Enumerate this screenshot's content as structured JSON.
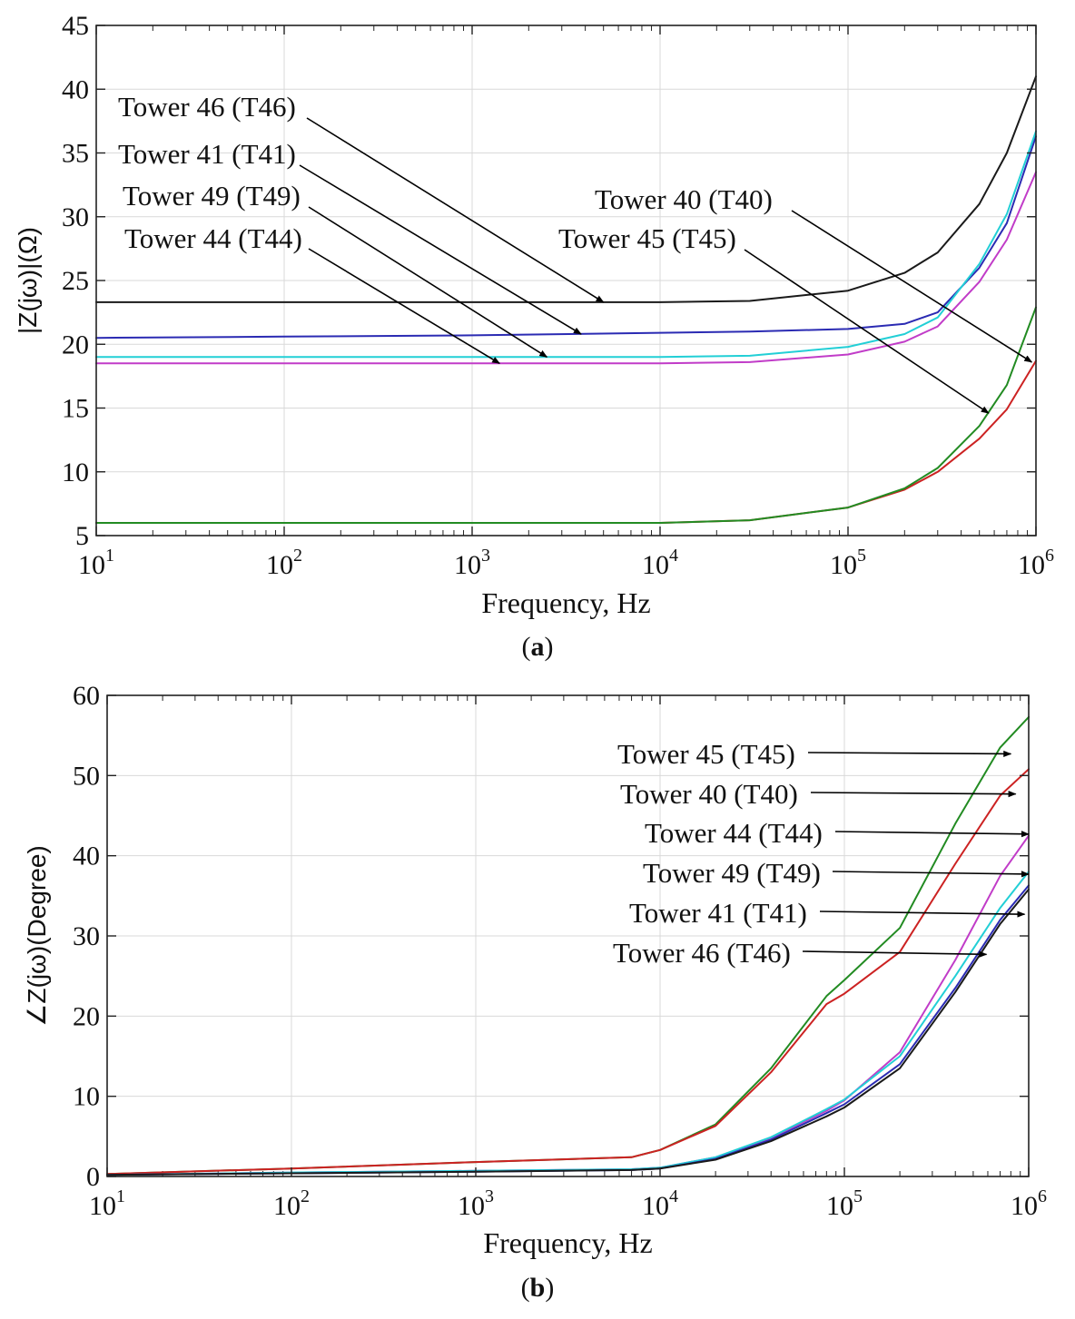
{
  "chart_data": [
    {
      "type": "line",
      "panel": "a",
      "xlabel": "Frequency, Hz",
      "ylabel": "|Z(jω)|(Ω)",
      "xscale": "log",
      "xlim": [
        10,
        1000000
      ],
      "ylim": [
        5,
        45
      ],
      "x_ticks": [
        {
          "base": "10",
          "exp": "1"
        },
        {
          "base": "10",
          "exp": "2"
        },
        {
          "base": "10",
          "exp": "3"
        },
        {
          "base": "10",
          "exp": "4"
        },
        {
          "base": "10",
          "exp": "5"
        },
        {
          "base": "10",
          "exp": "6"
        }
      ],
      "y_ticks": [
        "5",
        "10",
        "15",
        "20",
        "25",
        "30",
        "35",
        "40",
        "45"
      ],
      "grid": true,
      "x": [
        10,
        100,
        1000,
        10000,
        30000,
        100000,
        200000,
        300000,
        500000,
        700000,
        1000000
      ],
      "series": [
        {
          "name": "Tower 46 (T46)",
          "color": "#1a1a1a",
          "values": [
            23.3,
            23.3,
            23.3,
            23.3,
            23.4,
            24.2,
            25.6,
            27.2,
            31.0,
            35.0,
            41.0
          ]
        },
        {
          "name": "Tower 41 (T41)",
          "color": "#2b2bb3",
          "values": [
            20.5,
            20.6,
            20.7,
            20.9,
            21.0,
            21.2,
            21.6,
            22.5,
            26.0,
            29.5,
            36.3
          ]
        },
        {
          "name": "Tower 49 (T49)",
          "color": "#22cfd6",
          "values": [
            19.0,
            19.0,
            19.0,
            19.0,
            19.1,
            19.8,
            20.8,
            22.1,
            26.3,
            30.2,
            36.7
          ]
        },
        {
          "name": "Tower 44 (T44)",
          "color": "#c13cc8",
          "values": [
            18.5,
            18.5,
            18.5,
            18.5,
            18.6,
            19.2,
            20.2,
            21.4,
            24.9,
            28.2,
            33.5
          ]
        },
        {
          "name": "Tower 40 (T40)",
          "color": "#cc2222",
          "values": [
            6.0,
            6.0,
            6.0,
            6.0,
            6.2,
            7.2,
            8.6,
            10.0,
            12.6,
            14.9,
            18.7
          ]
        },
        {
          "name": "Tower 45 (T45)",
          "color": "#228b22",
          "values": [
            6.0,
            6.0,
            6.0,
            6.0,
            6.2,
            7.2,
            8.7,
            10.3,
            13.6,
            16.8,
            22.9
          ]
        }
      ],
      "annotations": [
        {
          "text": "Tower 46 (T46)",
          "target": [
            5000,
            23.3
          ]
        },
        {
          "text": "Tower 41 (T41)",
          "target": [
            3800,
            20.8
          ]
        },
        {
          "text": "Tower 49 (T49)",
          "target": [
            2500,
            19.0
          ]
        },
        {
          "text": "Tower 44 (T44)",
          "target": [
            1400,
            18.5
          ]
        },
        {
          "text": "Tower 40 (T40)",
          "target": [
            950000,
            18.6
          ]
        },
        {
          "text": "Tower 45 (T45)",
          "target": [
            560000,
            14.6
          ]
        }
      ],
      "caption": "(a)"
    },
    {
      "type": "line",
      "panel": "b",
      "xlabel": "Frequency, Hz",
      "ylabel": "∠Z(jω)(Degree)",
      "xscale": "log",
      "xlim": [
        10,
        1000000
      ],
      "ylim": [
        0,
        60
      ],
      "x_ticks": [
        {
          "base": "10",
          "exp": "1"
        },
        {
          "base": "10",
          "exp": "2"
        },
        {
          "base": "10",
          "exp": "3"
        },
        {
          "base": "10",
          "exp": "4"
        },
        {
          "base": "10",
          "exp": "5"
        },
        {
          "base": "10",
          "exp": "6"
        }
      ],
      "y_ticks": [
        "0",
        "10",
        "20",
        "30",
        "40",
        "50",
        "60"
      ],
      "grid": true,
      "x": [
        10,
        100,
        1000,
        7000,
        10000,
        20000,
        40000,
        80000,
        100000,
        200000,
        400000,
        700000,
        1000000
      ],
      "series": [
        {
          "name": "Tower 45 (T45)",
          "color": "#228b22",
          "values": [
            0.3,
            1.0,
            1.8,
            2.4,
            3.3,
            6.5,
            13.5,
            22.5,
            24.5,
            31.0,
            44.0,
            53.5,
            57.3
          ]
        },
        {
          "name": "Tower 40 (T40)",
          "color": "#cc2222",
          "values": [
            0.3,
            1.0,
            1.8,
            2.4,
            3.3,
            6.3,
            13.0,
            21.5,
            22.8,
            28.0,
            39.0,
            47.5,
            50.8
          ]
        },
        {
          "name": "Tower 44 (T44)",
          "color": "#c13cc8",
          "values": [
            0.2,
            0.5,
            0.7,
            0.9,
            1.1,
            2.4,
            4.8,
            8.2,
            9.5,
            15.5,
            27.0,
            37.5,
            42.5
          ]
        },
        {
          "name": "Tower 49 (T49)",
          "color": "#22cfd6",
          "values": [
            0.2,
            0.5,
            0.7,
            0.9,
            1.1,
            2.4,
            4.9,
            8.4,
            9.6,
            15.0,
            25.0,
            33.5,
            38.0
          ]
        },
        {
          "name": "Tower 41 (T41)",
          "color": "#2b2bb3",
          "values": [
            0.2,
            0.4,
            0.6,
            0.8,
            1.0,
            2.2,
            4.6,
            7.9,
            9.0,
            14.0,
            23.5,
            32.0,
            36.3
          ]
        },
        {
          "name": "Tower 46 (T46)",
          "color": "#1a1a1a",
          "values": [
            0.2,
            0.4,
            0.6,
            0.8,
            1.0,
            2.1,
            4.4,
            7.5,
            8.6,
            13.5,
            23.0,
            31.5,
            35.8
          ]
        }
      ],
      "annotations": [
        {
          "text": "Tower 45 (T45)",
          "target": [
            800000,
            52.7
          ]
        },
        {
          "text": "Tower 40 (T40)",
          "target": [
            850000,
            47.7
          ]
        },
        {
          "text": "Tower 44 (T44)",
          "target": [
            1000000,
            42.7
          ]
        },
        {
          "text": "Tower 49 (T49)",
          "target": [
            1000000,
            37.7
          ]
        },
        {
          "text": "Tower 41 (T41)",
          "target": [
            950000,
            32.7
          ]
        },
        {
          "text": "Tower 46 (T46)",
          "target": [
            590000,
            27.7
          ]
        }
      ],
      "caption": "(b)"
    }
  ]
}
